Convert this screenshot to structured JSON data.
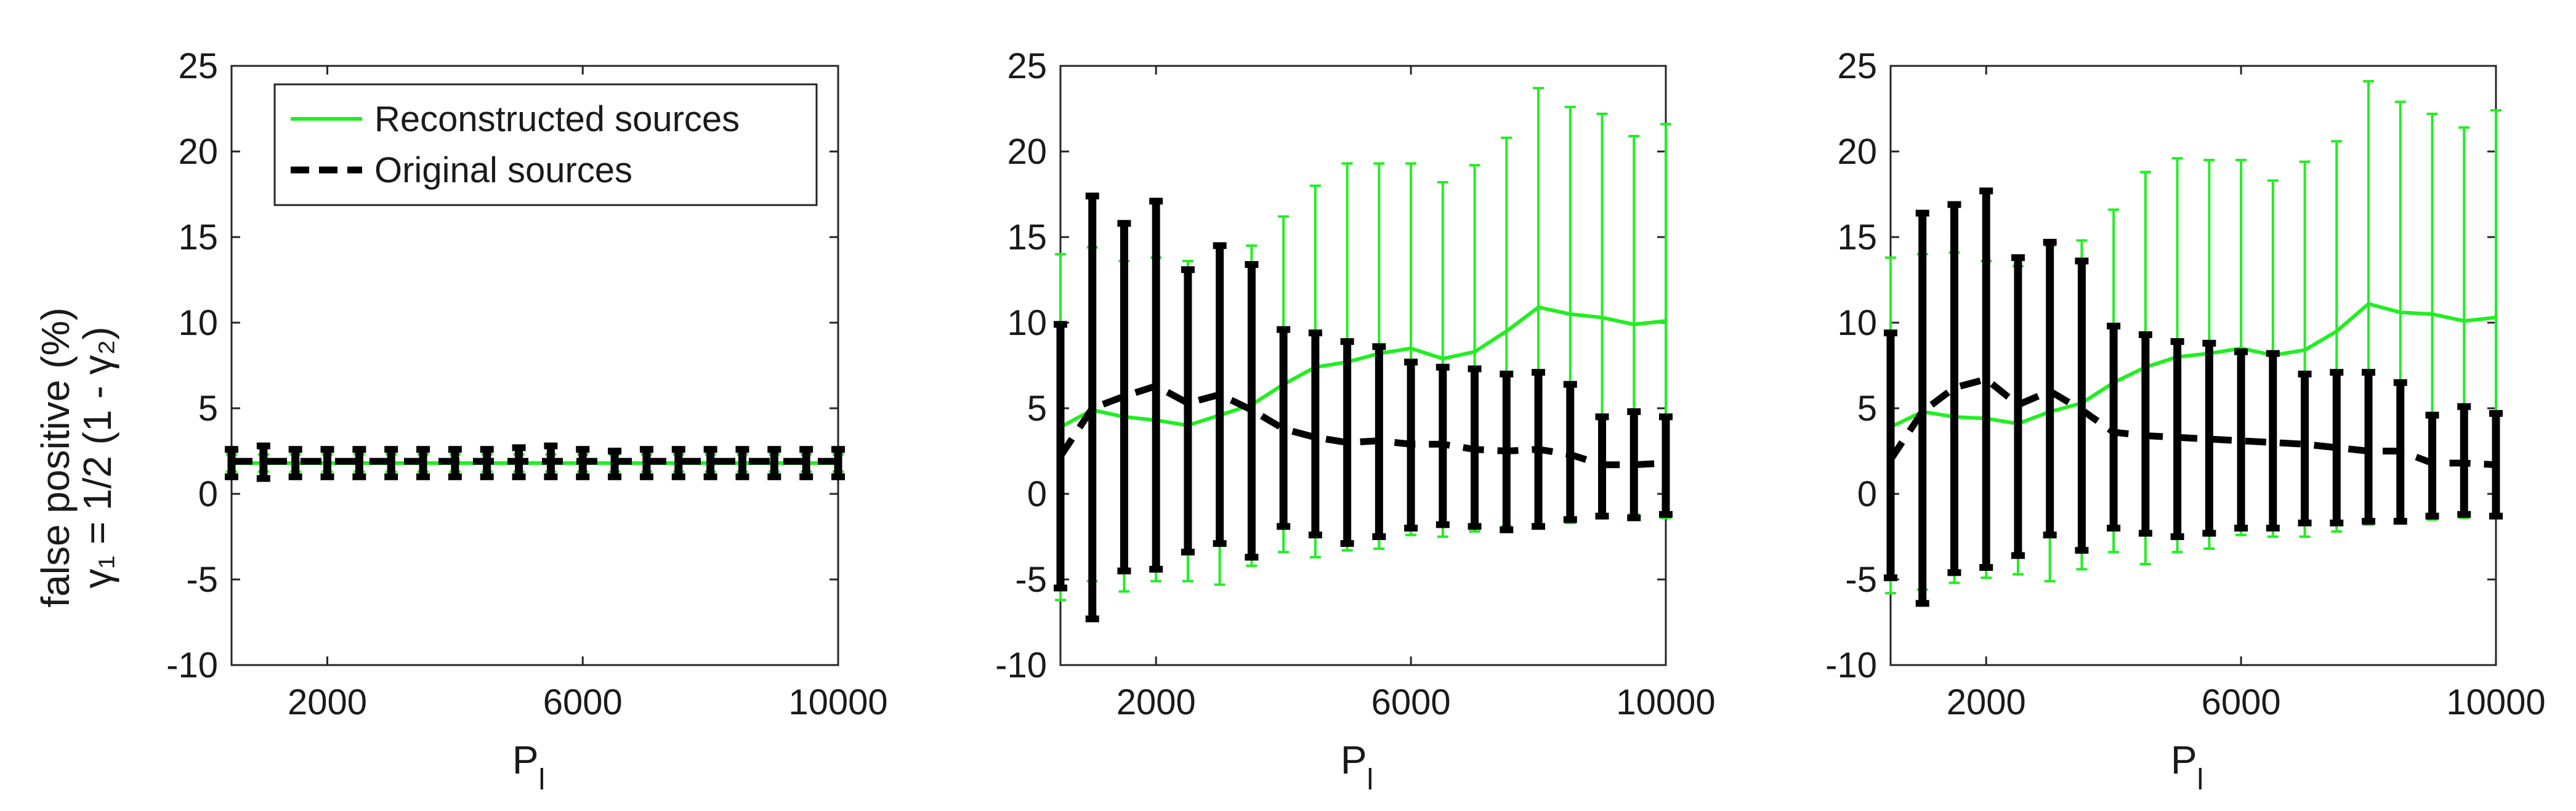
{
  "colors": {
    "reconstructed": "#22ee22",
    "original": "#000000"
  },
  "ylabel_lines": [
    "false positive (%)",
    "γ₁ = 1/2 (1 - γ₂)"
  ],
  "legend": {
    "reconstructed_label": "Reconstructed sources",
    "original_label": "Original sources",
    "placement": "top-left"
  },
  "chart_data": [
    {
      "type": "line",
      "xlabel": "P",
      "xlabel_subscript": "l",
      "ylabel": "false positive (%) γ1 = 1/2 (1 - γ2)",
      "xlim": [
        500,
        10000
      ],
      "ylim": [
        -10,
        25
      ],
      "xticks": [
        2000,
        6000,
        10000
      ],
      "yticks": [
        -10,
        -5,
        0,
        5,
        10,
        15,
        20,
        25
      ],
      "x": [
        500,
        1000,
        1500,
        2000,
        2500,
        3000,
        3500,
        4000,
        4500,
        5000,
        5500,
        6000,
        6500,
        7000,
        7500,
        8000,
        8500,
        9000,
        9500,
        10000
      ],
      "series": [
        {
          "name": "Reconstructed sources",
          "style": "solid",
          "values": [
            1.8,
            1.8,
            1.8,
            1.8,
            1.8,
            1.8,
            1.8,
            1.8,
            1.8,
            1.8,
            1.8,
            1.8,
            1.8,
            1.8,
            1.8,
            1.8,
            1.8,
            1.8,
            1.8,
            1.8
          ],
          "upper": [
            2.3,
            2.3,
            2.3,
            2.3,
            2.3,
            2.3,
            2.3,
            2.3,
            2.3,
            2.3,
            2.3,
            2.3,
            2.3,
            2.3,
            2.3,
            2.3,
            2.3,
            2.3,
            2.3,
            2.3
          ],
          "lower": [
            1.3,
            1.3,
            1.3,
            1.3,
            1.3,
            1.3,
            1.3,
            1.3,
            1.3,
            1.3,
            1.3,
            1.3,
            1.3,
            1.3,
            1.3,
            1.3,
            1.3,
            1.3,
            1.3,
            1.3
          ]
        },
        {
          "name": "Original sources",
          "style": "dashed",
          "values": [
            1.9,
            1.9,
            1.9,
            1.9,
            1.9,
            1.9,
            1.9,
            1.9,
            1.9,
            1.9,
            1.9,
            1.9,
            1.9,
            1.9,
            1.9,
            1.9,
            1.9,
            1.9,
            1.9,
            1.9
          ],
          "upper": [
            2.6,
            2.8,
            2.6,
            2.6,
            2.6,
            2.6,
            2.6,
            2.6,
            2.6,
            2.7,
            2.8,
            2.6,
            2.5,
            2.6,
            2.6,
            2.6,
            2.6,
            2.6,
            2.6,
            2.6
          ],
          "lower": [
            1.0,
            0.9,
            1.0,
            1.0,
            1.0,
            1.0,
            1.0,
            1.0,
            1.0,
            1.0,
            1.0,
            1.0,
            1.0,
            1.0,
            1.0,
            1.0,
            1.0,
            1.0,
            1.0,
            1.0
          ]
        }
      ]
    },
    {
      "type": "line",
      "xlabel": "P",
      "xlabel_subscript": "l",
      "ylabel": "",
      "xlim": [
        500,
        10000
      ],
      "ylim": [
        -10,
        25
      ],
      "xticks": [
        2000,
        6000,
        10000
      ],
      "yticks": [
        -10,
        -5,
        0,
        5,
        10,
        15,
        20,
        25
      ],
      "x": [
        500,
        1000,
        1500,
        2000,
        2500,
        3000,
        3500,
        4000,
        4500,
        5000,
        5500,
        6000,
        6500,
        7000,
        7500,
        8000,
        8500,
        9000,
        9500,
        10000
      ],
      "series": [
        {
          "name": "Reconstructed sources",
          "style": "solid",
          "values": [
            3.9,
            4.9,
            4.5,
            4.3,
            4.0,
            4.6,
            5.2,
            6.4,
            7.4,
            7.7,
            8.2,
            8.5,
            7.9,
            8.3,
            9.5,
            10.9,
            10.5,
            10.3,
            9.9,
            10.1
          ],
          "upper": [
            14.0,
            14.4,
            13.6,
            13.8,
            13.6,
            14.4,
            14.5,
            16.2,
            18.0,
            19.3,
            19.3,
            19.3,
            18.2,
            19.2,
            20.8,
            23.7,
            22.6,
            22.2,
            20.9,
            21.6
          ],
          "lower": [
            -6.2,
            -5.1,
            -5.7,
            -5.1,
            -5.1,
            -5.3,
            -4.2,
            -3.4,
            -3.7,
            -3.3,
            -3.2,
            -2.4,
            -2.5,
            -2.2,
            -1.9,
            -1.8,
            -1.7,
            -1.3,
            -1.2,
            -1.4
          ]
        },
        {
          "name": "Original sources",
          "style": "dashed",
          "values": [
            2.2,
            5.0,
            5.7,
            6.3,
            5.3,
            5.8,
            4.9,
            3.8,
            3.3,
            3.0,
            3.1,
            2.9,
            2.9,
            2.6,
            2.5,
            2.6,
            2.3,
            1.7,
            1.7,
            1.8
          ],
          "upper": [
            9.9,
            17.4,
            15.8,
            17.1,
            13.1,
            14.5,
            13.4,
            9.6,
            9.4,
            8.9,
            8.6,
            7.7,
            7.4,
            7.3,
            7.0,
            7.1,
            6.4,
            4.5,
            4.8,
            4.5
          ],
          "lower": [
            -5.5,
            -7.3,
            -4.5,
            -4.4,
            -3.4,
            -2.9,
            -3.7,
            -1.9,
            -2.4,
            -2.9,
            -2.5,
            -2.0,
            -1.8,
            -1.9,
            -2.1,
            -1.9,
            -1.5,
            -1.3,
            -1.4,
            -1.2
          ]
        }
      ]
    },
    {
      "type": "line",
      "xlabel": "P",
      "xlabel_subscript": "l",
      "ylabel": "",
      "xlim": [
        500,
        10000
      ],
      "ylim": [
        -10,
        25
      ],
      "xticks": [
        2000,
        6000,
        10000
      ],
      "yticks": [
        -10,
        -5,
        0,
        5,
        10,
        15,
        20,
        25
      ],
      "x": [
        500,
        1000,
        1500,
        2000,
        2500,
        3000,
        3500,
        4000,
        4500,
        5000,
        5500,
        6000,
        6500,
        7000,
        7500,
        8000,
        8500,
        9000,
        9500,
        10000
      ],
      "series": [
        {
          "name": "Reconstructed sources",
          "style": "solid",
          "values": [
            3.9,
            4.8,
            4.5,
            4.4,
            4.1,
            4.8,
            5.3,
            6.5,
            7.4,
            8.0,
            8.2,
            8.5,
            8.1,
            8.4,
            9.5,
            11.1,
            10.6,
            10.5,
            10.1,
            10.3
          ],
          "upper": [
            13.8,
            14.0,
            14.1,
            13.6,
            13.3,
            14.5,
            14.8,
            16.6,
            18.8,
            19.6,
            19.5,
            19.5,
            18.3,
            19.4,
            20.6,
            24.1,
            22.9,
            22.2,
            21.4,
            22.4
          ],
          "lower": [
            -5.8,
            -5.6,
            -5.2,
            -4.9,
            -4.7,
            -5.1,
            -4.4,
            -3.4,
            -4.1,
            -3.4,
            -3.2,
            -2.4,
            -2.5,
            -2.5,
            -2.2,
            -1.8,
            -1.7,
            -1.5,
            -1.4,
            -1.3
          ]
        },
        {
          "name": "Original sources",
          "style": "dashed",
          "values": [
            2.0,
            4.8,
            6.2,
            6.7,
            5.2,
            6.0,
            4.9,
            3.6,
            3.4,
            3.3,
            3.2,
            3.1,
            3.0,
            2.9,
            2.7,
            2.5,
            2.5,
            1.8,
            1.8,
            1.7
          ],
          "upper": [
            9.4,
            16.4,
            16.9,
            17.7,
            13.8,
            14.7,
            13.6,
            9.8,
            9.3,
            8.9,
            8.8,
            8.3,
            8.2,
            7.0,
            7.1,
            7.1,
            6.5,
            4.6,
            5.1,
            4.7
          ],
          "lower": [
            -4.9,
            -6.4,
            -4.6,
            -4.3,
            -3.6,
            -2.4,
            -3.3,
            -2.0,
            -2.3,
            -2.5,
            -2.3,
            -2.0,
            -2.0,
            -1.7,
            -1.7,
            -1.6,
            -1.6,
            -1.3,
            -1.2,
            -1.3
          ]
        }
      ]
    }
  ]
}
